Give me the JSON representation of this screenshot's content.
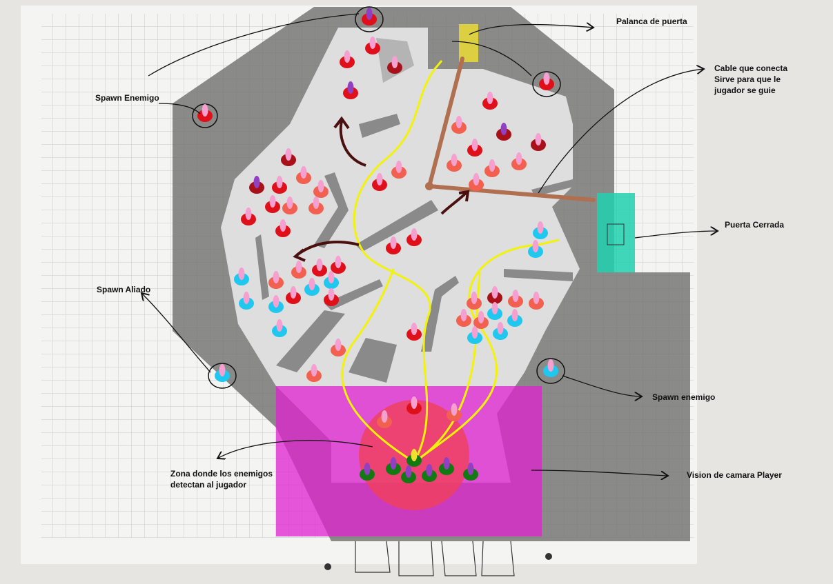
{
  "annotations": [
    {
      "lines": [
        "Palanca de puerta"
      ]
    },
    {
      "lines": [
        "Cable que conecta",
        "Sirve para que le",
        "jugador se guie"
      ]
    },
    {
      "lines": [
        "Spawn Enemigo"
      ]
    },
    {
      "lines": [
        "Puerta Cerrada"
      ]
    },
    {
      "lines": [
        "Spawn Aliado"
      ]
    },
    {
      "lines": [
        "Spawn enemigo"
      ]
    },
    {
      "lines": [
        "Zona donde los enemigos",
        "detectan al jugador"
      ]
    },
    {
      "lines": [
        "Vision de camara Player"
      ]
    }
  ]
}
